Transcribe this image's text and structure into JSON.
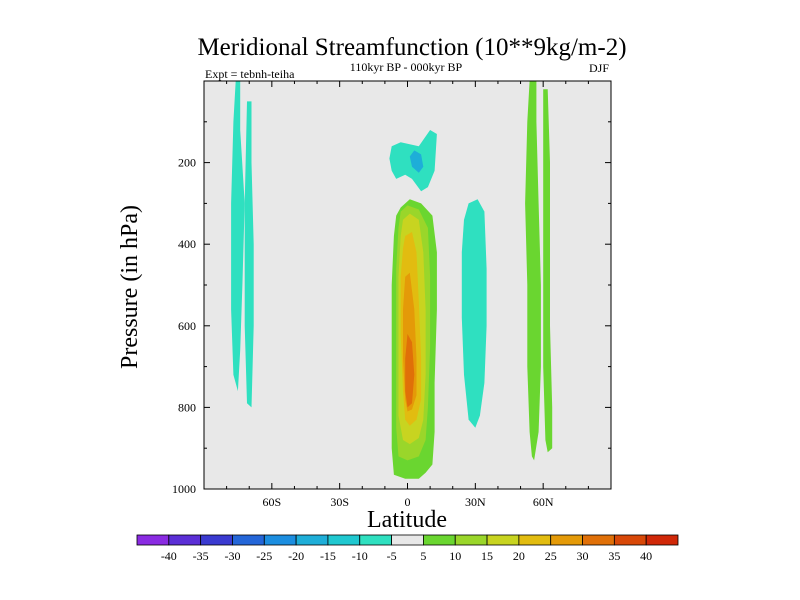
{
  "chart_data": {
    "type": "contour",
    "title": "Meridional Streamfunction (10**9kg/m-2)",
    "subtitle": "110kyr BP - 000kyr BP",
    "left_label": "Expt = tebnh-teiha",
    "season": "DJF",
    "xlabel": "Latitude",
    "ylabel": "Pressure (in hPa)",
    "xlim": [
      -90,
      90
    ],
    "ylim": [
      1000,
      0
    ],
    "x_ticks": [
      {
        "value": -60,
        "label": "60S"
      },
      {
        "value": -30,
        "label": "30S"
      },
      {
        "value": 0,
        "label": "0"
      },
      {
        "value": 30,
        "label": "30N"
      },
      {
        "value": 60,
        "label": "60N"
      }
    ],
    "y_ticks": [
      {
        "value": 200,
        "label": "200"
      },
      {
        "value": 400,
        "label": "400"
      },
      {
        "value": 600,
        "label": "600"
      },
      {
        "value": 800,
        "label": "800"
      },
      {
        "value": 1000,
        "label": "1000"
      }
    ],
    "colorbar": {
      "labels": [
        "-40",
        "-35",
        "-30",
        "-25",
        "-20",
        "-15",
        "-10",
        "-5",
        "5",
        "10",
        "15",
        "20",
        "25",
        "30",
        "35",
        "40"
      ],
      "colors": [
        "#8a2be2",
        "#5b2fd6",
        "#3a3ad0",
        "#2466d8",
        "#1c8ee0",
        "#1eaed8",
        "#20c8d0",
        "#2fe0c0",
        "#e8e8e8",
        "#6ad630",
        "#9ad62a",
        "#c8d420",
        "#e2bc10",
        "#e49a08",
        "#e07008",
        "#d84808",
        "#d02808"
      ]
    },
    "regions": [
      {
        "name": "sh-high-lat-negative-1",
        "level": "-10 to -5",
        "color": "#2fe0c0",
        "points": [
          [
            -76,
            0
          ],
          [
            -74,
            0
          ],
          [
            -74,
            120
          ],
          [
            -72,
            300
          ],
          [
            -73,
            500
          ],
          [
            -74,
            660
          ],
          [
            -75,
            760
          ],
          [
            -77,
            720
          ],
          [
            -78,
            560
          ],
          [
            -78,
            300
          ],
          [
            -77,
            100
          ]
        ]
      },
      {
        "name": "sh-high-lat-negative-2",
        "level": "-10 to -5",
        "color": "#2fe0c0",
        "points": [
          [
            -71,
            50
          ],
          [
            -69,
            50
          ],
          [
            -69,
            200
          ],
          [
            -68,
            400
          ],
          [
            -68,
            600
          ],
          [
            -69,
            800
          ],
          [
            -71,
            790
          ],
          [
            -72,
            600
          ],
          [
            -72,
            300
          ]
        ]
      },
      {
        "name": "upper-tropical-negative",
        "level": "-10 to -5",
        "color": "#2fe0c0",
        "points": [
          [
            -7,
            160
          ],
          [
            -3,
            150
          ],
          [
            5,
            160
          ],
          [
            10,
            120
          ],
          [
            13,
            130
          ],
          [
            12,
            220
          ],
          [
            9,
            260
          ],
          [
            6,
            270
          ],
          [
            2,
            240
          ],
          [
            -1,
            230
          ],
          [
            -5,
            240
          ],
          [
            -7,
            220
          ],
          [
            -8,
            190
          ]
        ]
      },
      {
        "name": "upper-tropical-negative-core",
        "level": "-15 to -10",
        "color": "#1eaed8",
        "points": [
          [
            3,
            170
          ],
          [
            6,
            180
          ],
          [
            7,
            210
          ],
          [
            5,
            225
          ],
          [
            2,
            210
          ],
          [
            1,
            185
          ]
        ]
      },
      {
        "name": "tropical-positive-5",
        "level": "5 to 10",
        "color": "#6ad630",
        "points": [
          [
            -3,
            310
          ],
          [
            1,
            290
          ],
          [
            6,
            300
          ],
          [
            11,
            330
          ],
          [
            13,
            420
          ],
          [
            13,
            560
          ],
          [
            12,
            740
          ],
          [
            12,
            860
          ],
          [
            11,
            940
          ],
          [
            8,
            960
          ],
          [
            5,
            975
          ],
          [
            -1,
            975
          ],
          [
            -6,
            965
          ],
          [
            -7,
            900
          ],
          [
            -7,
            700
          ],
          [
            -7,
            500
          ],
          [
            -6,
            380
          ],
          [
            -5,
            330
          ]
        ]
      },
      {
        "name": "tropical-positive-10",
        "level": "10 to 15",
        "color": "#9ad62a",
        "points": [
          [
            -3,
            320
          ],
          [
            0,
            305
          ],
          [
            5,
            315
          ],
          [
            9,
            360
          ],
          [
            10,
            480
          ],
          [
            10,
            650
          ],
          [
            9,
            800
          ],
          [
            8,
            880
          ],
          [
            5,
            920
          ],
          [
            0,
            930
          ],
          [
            -4,
            920
          ],
          [
            -5,
            850
          ],
          [
            -5,
            650
          ],
          [
            -5,
            460
          ],
          [
            -4,
            360
          ]
        ]
      },
      {
        "name": "tropical-positive-15",
        "level": "15 to 20",
        "color": "#c8d420",
        "points": [
          [
            -2,
            340
          ],
          [
            1,
            325
          ],
          [
            5,
            340
          ],
          [
            7,
            420
          ],
          [
            8,
            560
          ],
          [
            8,
            720
          ],
          [
            7,
            830
          ],
          [
            5,
            875
          ],
          [
            1,
            890
          ],
          [
            -2,
            880
          ],
          [
            -4,
            820
          ],
          [
            -4,
            640
          ],
          [
            -4,
            480
          ],
          [
            -3,
            380
          ]
        ]
      },
      {
        "name": "tropical-positive-20",
        "level": "20 to 25",
        "color": "#e2bc10",
        "points": [
          [
            -1,
            380
          ],
          [
            2,
            370
          ],
          [
            4,
            420
          ],
          [
            5,
            540
          ],
          [
            6,
            680
          ],
          [
            6,
            780
          ],
          [
            4,
            830
          ],
          [
            1,
            845
          ],
          [
            -1,
            830
          ],
          [
            -2,
            760
          ],
          [
            -3,
            620
          ],
          [
            -3,
            480
          ],
          [
            -2,
            410
          ]
        ]
      },
      {
        "name": "tropical-positive-25",
        "level": "25 to 30",
        "color": "#e49a08",
        "points": [
          [
            -1,
            480
          ],
          [
            1,
            470
          ],
          [
            3,
            560
          ],
          [
            4,
            680
          ],
          [
            4,
            770
          ],
          [
            2,
            805
          ],
          [
            0,
            810
          ],
          [
            -1,
            780
          ],
          [
            -2,
            680
          ],
          [
            -2,
            560
          ]
        ]
      },
      {
        "name": "tropical-positive-30",
        "level": "30 to 35",
        "color": "#e07008",
        "points": [
          [
            0,
            620
          ],
          [
            2,
            640
          ],
          [
            3,
            720
          ],
          [
            2,
            790
          ],
          [
            0,
            800
          ],
          [
            -1,
            760
          ],
          [
            -1,
            680
          ]
        ]
      },
      {
        "name": "nh-subtropical-negative",
        "level": "-10 to -5",
        "color": "#2fe0c0",
        "points": [
          [
            27,
            300
          ],
          [
            31,
            290
          ],
          [
            34,
            320
          ],
          [
            35,
            460
          ],
          [
            35,
            600
          ],
          [
            34,
            740
          ],
          [
            32,
            820
          ],
          [
            30,
            850
          ],
          [
            27,
            830
          ],
          [
            25,
            720
          ],
          [
            24,
            580
          ],
          [
            24,
            420
          ],
          [
            25,
            340
          ]
        ]
      },
      {
        "name": "nh-high-lat-positive-1",
        "level": "5 to 10",
        "color": "#6ad630",
        "points": [
          [
            54,
            0
          ],
          [
            57,
            0
          ],
          [
            57,
            100
          ],
          [
            58,
            300
          ],
          [
            59,
            500
          ],
          [
            59,
            700
          ],
          [
            58,
            860
          ],
          [
            56,
            930
          ],
          [
            55,
            920
          ],
          [
            54,
            860
          ],
          [
            53,
            700
          ],
          [
            53,
            500
          ],
          [
            52,
            300
          ],
          [
            53,
            100
          ]
        ]
      },
      {
        "name": "nh-high-lat-positive-2",
        "level": "5 to 10",
        "color": "#6ad630",
        "points": [
          [
            60,
            20
          ],
          [
            62,
            20
          ],
          [
            63,
            200
          ],
          [
            63,
            400
          ],
          [
            63,
            600
          ],
          [
            64,
            800
          ],
          [
            64,
            900
          ],
          [
            62,
            910
          ],
          [
            61,
            880
          ],
          [
            60,
            700
          ],
          [
            60,
            500
          ],
          [
            60,
            300
          ]
        ]
      }
    ]
  }
}
